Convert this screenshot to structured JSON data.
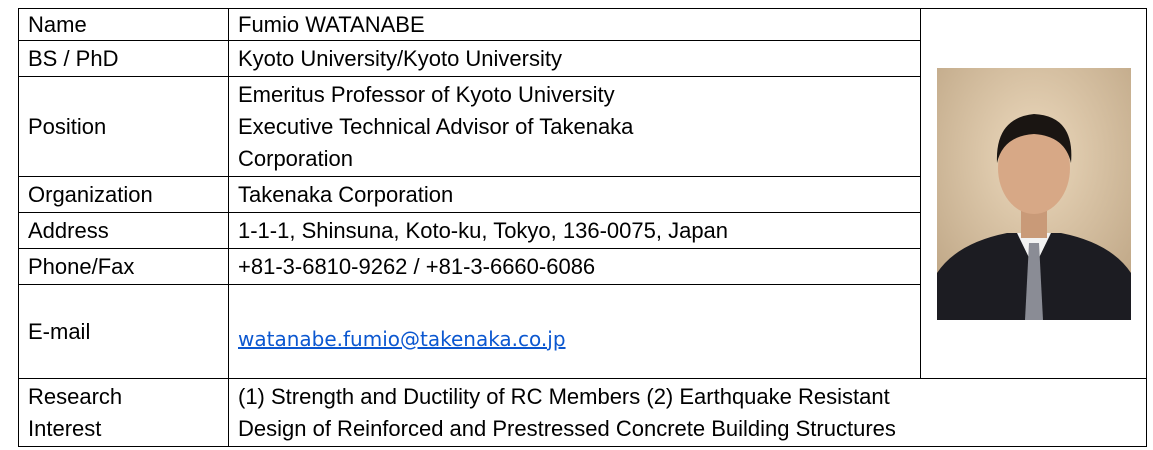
{
  "rows": [
    {
      "label": "Name",
      "value": "Fumio WATANABE"
    },
    {
      "label": "BS / PhD",
      "value": "Kyoto University/Kyoto University"
    },
    {
      "label": "Position",
      "value": [
        "Emeritus Professor of Kyoto University",
        "Executive Technical Advisor of Takenaka",
        "Corporation"
      ]
    },
    {
      "label": "Organization",
      "value": "Takenaka Corporation"
    },
    {
      "label": "Address",
      "value": "1-1-1, Shinsuna, Koto-ku, Tokyo, 136-0075, Japan"
    },
    {
      "label": "Phone/Fax",
      "value": "+81-3-6810-9262 / +81-3-6660-6086"
    },
    {
      "label": "E-mail",
      "value": "watanabe.fumio@takenaka.co.jp"
    },
    {
      "label": [
        "Research",
        "Interest"
      ],
      "value": [
        "(1) Strength and Ductility of RC Members (2) Earthquake Resistant",
        "Design of Reinforced and Prestressed Concrete Building Structures"
      ]
    }
  ]
}
